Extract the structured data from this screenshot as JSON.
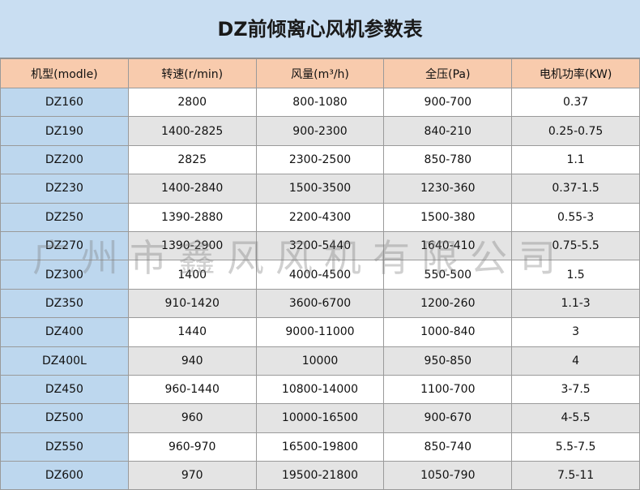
{
  "header": {
    "title": "DZ前倾离心风机参数表"
  },
  "table": {
    "columns": [
      "机型(modle)",
      "转速(r/min)",
      "风量(m³/h)",
      "全压(Pa)",
      "电机功率(KW)"
    ],
    "rows": [
      [
        "DZ160",
        "2800",
        "800-1080",
        "900-700",
        "0.37"
      ],
      [
        "DZ190",
        "1400-2825",
        "900-2300",
        "840-210",
        "0.25-0.75"
      ],
      [
        "DZ200",
        "2825",
        "2300-2500",
        "850-780",
        "1.1"
      ],
      [
        "DZ230",
        "1400-2840",
        "1500-3500",
        "1230-360",
        "0.37-1.5"
      ],
      [
        "DZ250",
        "1390-2880",
        "2200-4300",
        "1500-380",
        "0.55-3"
      ],
      [
        "DZ270",
        "1390-2900",
        "3200-5440",
        "1640-410",
        "0.75-5.5"
      ],
      [
        "DZ300",
        "1400",
        "4000-4500",
        "550-500",
        "1.5"
      ],
      [
        "DZ350",
        "910-1420",
        "3600-6700",
        "1200-260",
        "1.1-3"
      ],
      [
        "DZ400",
        "1440",
        "9000-11000",
        "1000-840",
        "3"
      ],
      [
        "DZ400L",
        "940",
        "10000",
        "950-850",
        "4"
      ],
      [
        "DZ450",
        "960-1440",
        "10800-14000",
        "1100-700",
        "3-7.5"
      ],
      [
        "DZ500",
        "960",
        "10000-16500",
        "900-670",
        "4-5.5"
      ],
      [
        "DZ550",
        "960-970",
        "16500-19800",
        "850-740",
        "5.5-7.5"
      ],
      [
        "DZ600",
        "970",
        "19500-21800",
        "1050-790",
        "7.5-11"
      ]
    ]
  },
  "watermark": "广州市鑫风风机有限公司"
}
